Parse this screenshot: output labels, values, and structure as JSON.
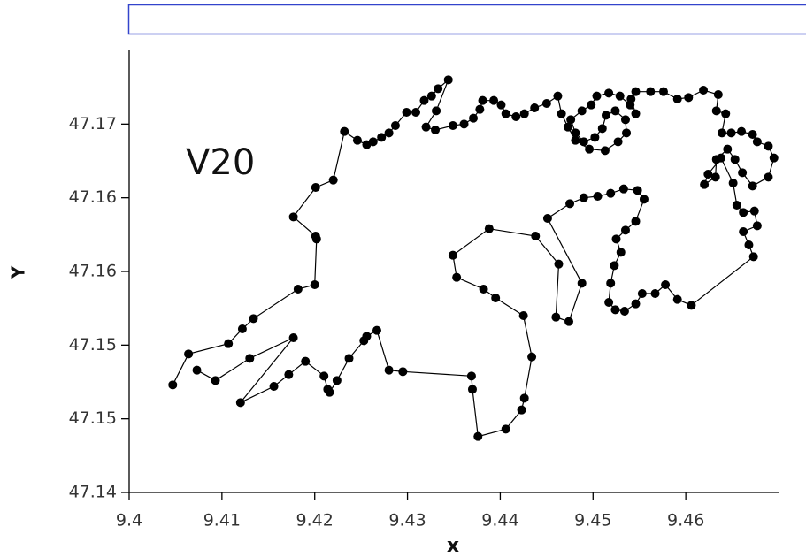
{
  "chart_data": {
    "type": "line",
    "x_label": "x",
    "y_label": "Y",
    "annotation": "V20",
    "color": "#000000",
    "marker": true,
    "xlim": [
      9.4,
      9.47
    ],
    "xticks": [
      9.4,
      9.41,
      9.42,
      9.43,
      9.44,
      9.45,
      9.46
    ],
    "ylim": [
      47.14,
      47.17
    ],
    "yticks": [
      47.14,
      {
        "value": 47.145,
        "label": "47.15"
      },
      47.15,
      {
        "value": 47.155,
        "label": "47.16"
      },
      47.16,
      {
        "value": 47.165,
        "label": "47.17"
      }
    ],
    "x": [
      9.4047,
      9.4064,
      9.4107,
      9.4122,
      9.4134,
      9.4182,
      9.42,
      9.4202,
      9.4201,
      9.4177,
      9.4201,
      9.422,
      9.4232,
      9.4246,
      9.4256,
      9.4263,
      9.4272,
      9.428,
      9.4287,
      9.4299,
      9.4309,
      9.4318,
      9.4326,
      9.4333,
      9.4344,
      9.4331,
      9.432,
      9.433,
      9.4349,
      9.4361,
      9.4371,
      9.4378,
      9.4381,
      9.4393,
      9.4401,
      9.4406,
      9.4417,
      9.4426,
      9.4437,
      9.445,
      9.4462,
      9.4466,
      9.4473,
      9.4481,
      9.4496,
      9.4513,
      9.4527,
      9.4536,
      9.4535,
      9.4524,
      9.4514,
      9.451,
      9.4502,
      9.449,
      9.4481,
      9.4476,
      9.4488,
      9.4498,
      9.4504,
      9.4517,
      9.4529,
      9.454,
      9.4546,
      9.4541,
      9.4546,
      9.4562,
      9.4576,
      9.4591,
      9.4603,
      9.4619,
      9.4635,
      9.4633,
      9.4643,
      9.4639,
      9.4649,
      9.466,
      9.4672,
      9.4677,
      9.4689,
      9.4695,
      9.4689,
      9.4672,
      9.4661,
      9.4653,
      9.4645,
      9.4633,
      9.4632,
      9.462,
      9.4624,
      9.4638,
      9.4651,
      9.4655,
      9.4662,
      9.4674,
      9.4677,
      9.4662,
      9.4668,
      9.4673,
      9.4606,
      9.4591,
      9.4578,
      9.4567,
      9.4553,
      9.4546,
      9.4534,
      9.4524,
      9.4517,
      9.4519,
      9.4523,
      9.453,
      9.4525,
      9.4535,
      9.4546,
      9.4555,
      9.4548,
      9.4533,
      9.4519,
      9.4505,
      9.449,
      9.4475,
      9.4451,
      9.4488,
      9.4474,
      9.446,
      9.4463,
      9.4438,
      9.4388,
      9.4349,
      9.4353,
      9.4382,
      9.4395,
      9.4425,
      9.4434,
      9.4426,
      9.4423,
      9.4406,
      9.4376,
      9.437,
      9.4369,
      9.4295,
      9.428,
      9.4267,
      9.4256,
      9.4253,
      9.4237,
      9.4224,
      9.4216,
      9.4214,
      9.421,
      9.419,
      9.4172,
      9.4156,
      9.412,
      9.4177,
      9.413,
      9.4093,
      9.4073
    ],
    "values": [
      47.1473,
      47.1494,
      47.1501,
      47.1511,
      47.1518,
      47.1538,
      47.1541,
      47.1572,
      47.1574,
      47.1587,
      47.1607,
      47.1612,
      47.1645,
      47.1639,
      47.1636,
      47.1638,
      47.1641,
      47.1644,
      47.1649,
      47.1658,
      47.1658,
      47.1666,
      47.1669,
      47.1674,
      47.168,
      47.1659,
      47.1648,
      47.1646,
      47.1649,
      47.165,
      47.1654,
      47.166,
      47.1666,
      47.1666,
      47.1663,
      47.1657,
      47.1655,
      47.1657,
      47.1661,
      47.1664,
      47.1669,
      47.1657,
      47.1648,
      47.1639,
      47.1633,
      47.1632,
      47.1638,
      47.1644,
      47.1653,
      47.1659,
      47.1656,
      47.1647,
      47.1641,
      47.1638,
      47.1644,
      47.1653,
      47.1659,
      47.1663,
      47.1669,
      47.1671,
      47.1669,
      47.1663,
      47.1657,
      47.1667,
      47.1672,
      47.1672,
      47.1672,
      47.1667,
      47.1668,
      47.1673,
      47.167,
      47.1659,
      47.1657,
      47.1644,
      47.1644,
      47.1645,
      47.1643,
      47.1638,
      47.1635,
      47.1627,
      47.1614,
      47.1608,
      47.1617,
      47.1626,
      47.1633,
      47.1626,
      47.1614,
      47.1609,
      47.1616,
      47.1627,
      47.161,
      47.1595,
      47.159,
      47.1591,
      47.1581,
      47.1577,
      47.1568,
      47.156,
      47.1527,
      47.1531,
      47.1541,
      47.1535,
      47.1535,
      47.1528,
      47.1523,
      47.1524,
      47.1529,
      47.1542,
      47.1554,
      47.1563,
      47.1572,
      47.1578,
      47.1584,
      47.1599,
      47.1605,
      47.1606,
      47.1603,
      47.1601,
      47.16,
      47.1596,
      47.1586,
      47.1542,
      47.1516,
      47.1519,
      47.1555,
      47.1574,
      47.1579,
      47.1561,
      47.1546,
      47.1538,
      47.1532,
      47.152,
      47.1492,
      47.1464,
      47.1456,
      47.1443,
      47.1438,
      47.147,
      47.1479,
      47.1482,
      47.1483,
      47.151,
      47.1506,
      47.1503,
      47.1491,
      47.1476,
      47.1468,
      47.147,
      47.1479,
      47.1489,
      47.148,
      47.1472,
      47.1461,
      47.1505,
      47.1491,
      47.1476,
      47.1483
    ]
  }
}
